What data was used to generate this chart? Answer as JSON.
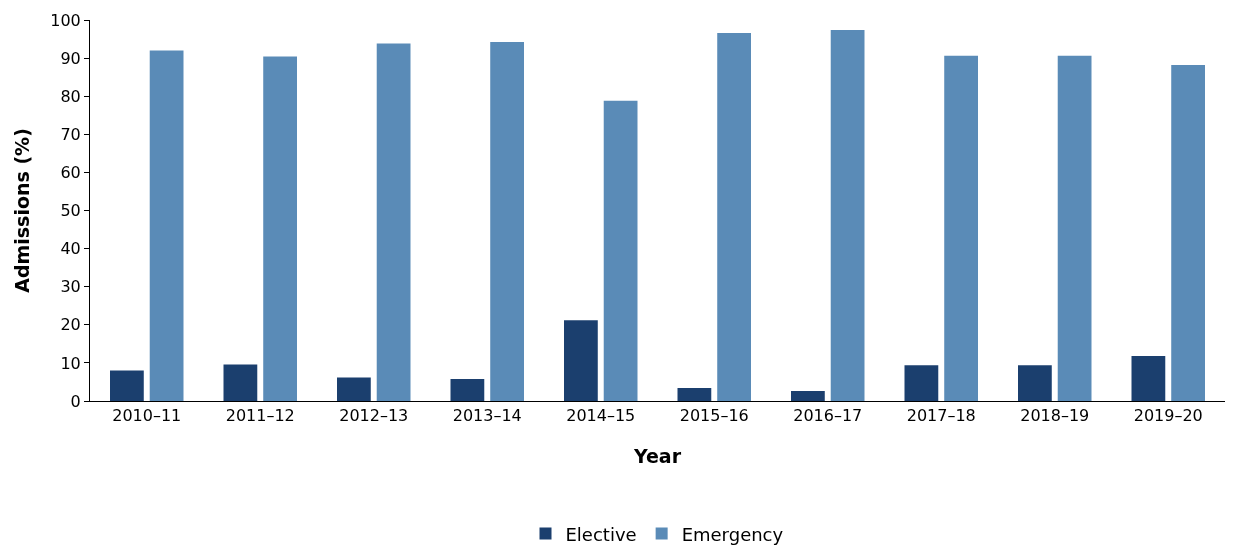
{
  "chart_data": {
    "type": "bar",
    "xlabel": "Year",
    "ylabel": "Admissions (%)",
    "categories": [
      "2010–11",
      "2011–12",
      "2012–13",
      "2013–14",
      "2014–15",
      "2015–16",
      "2016–17",
      "2017–18",
      "2018–19",
      "2019–20"
    ],
    "series": [
      {
        "name": "Elective",
        "color": "#1b3f6e",
        "values": [
          8.0,
          9.6,
          6.2,
          5.8,
          21.2,
          3.4,
          2.6,
          9.4,
          9.4,
          11.8
        ]
      },
      {
        "name": "Emergency",
        "color": "#5a8bb7",
        "values": [
          92.0,
          90.4,
          93.8,
          94.2,
          78.8,
          96.6,
          97.4,
          90.6,
          90.6,
          88.2
        ]
      }
    ],
    "ylim": [
      0,
      100
    ],
    "yticks": [
      0,
      10,
      20,
      30,
      40,
      50,
      60,
      70,
      80,
      90,
      100
    ],
    "legend": "bottom"
  }
}
